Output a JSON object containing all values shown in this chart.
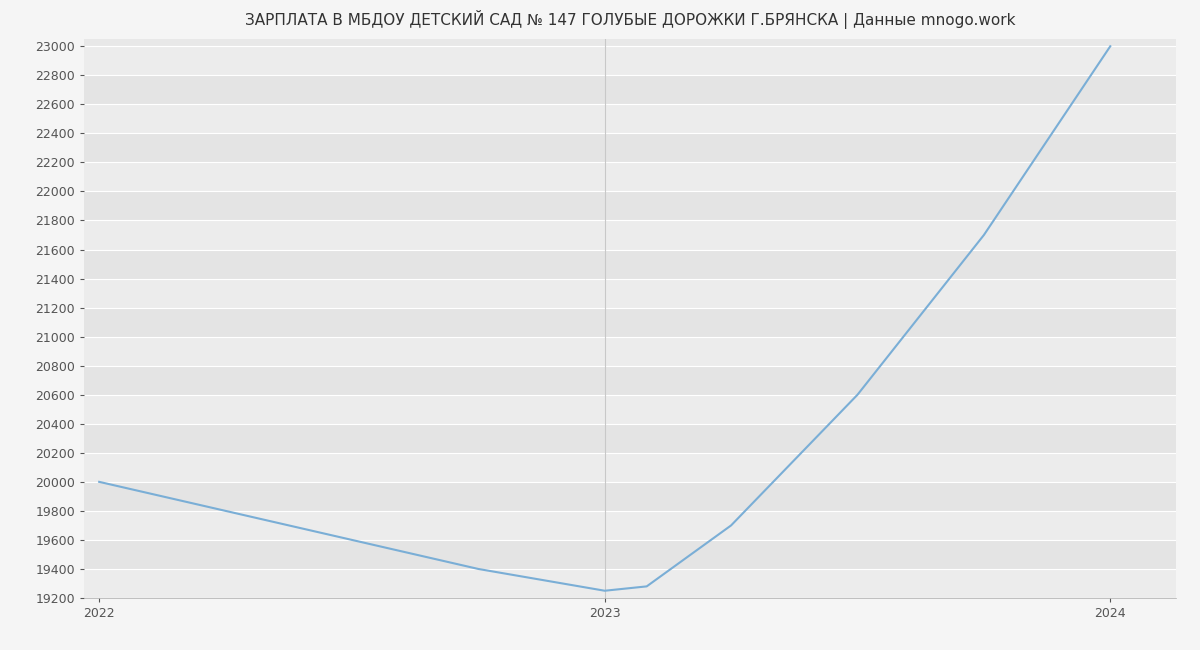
{
  "title": "ЗАРПЛАТА В МБДОУ ДЕТСКИЙ САД № 147 ГОЛУБЫЕ ДОРОЖКИ Г.БРЯНСКА | Данные mnogo.work",
  "x_values": [
    2022.0,
    2022.25,
    2022.5,
    2022.75,
    2023.0,
    2023.083,
    2023.25,
    2023.5,
    2023.75,
    2024.0
  ],
  "y_values": [
    20000,
    19800,
    19600,
    19400,
    19250,
    19280,
    19700,
    20600,
    21700,
    23000
  ],
  "line_color": "#7aaed6",
  "background_color": "#f5f5f5",
  "plot_bg_color": "#e8e8e8",
  "grid_color": "#ffffff",
  "ylim_min": 19200,
  "ylim_max": 23050,
  "ytick_step": 200,
  "x_ticks": [
    2022,
    2023,
    2024
  ],
  "title_fontsize": 11,
  "tick_fontsize": 9,
  "line_width": 1.5,
  "vline_color": "#c8c8c8",
  "band_colors": [
    "#ececec",
    "#e4e4e4"
  ]
}
